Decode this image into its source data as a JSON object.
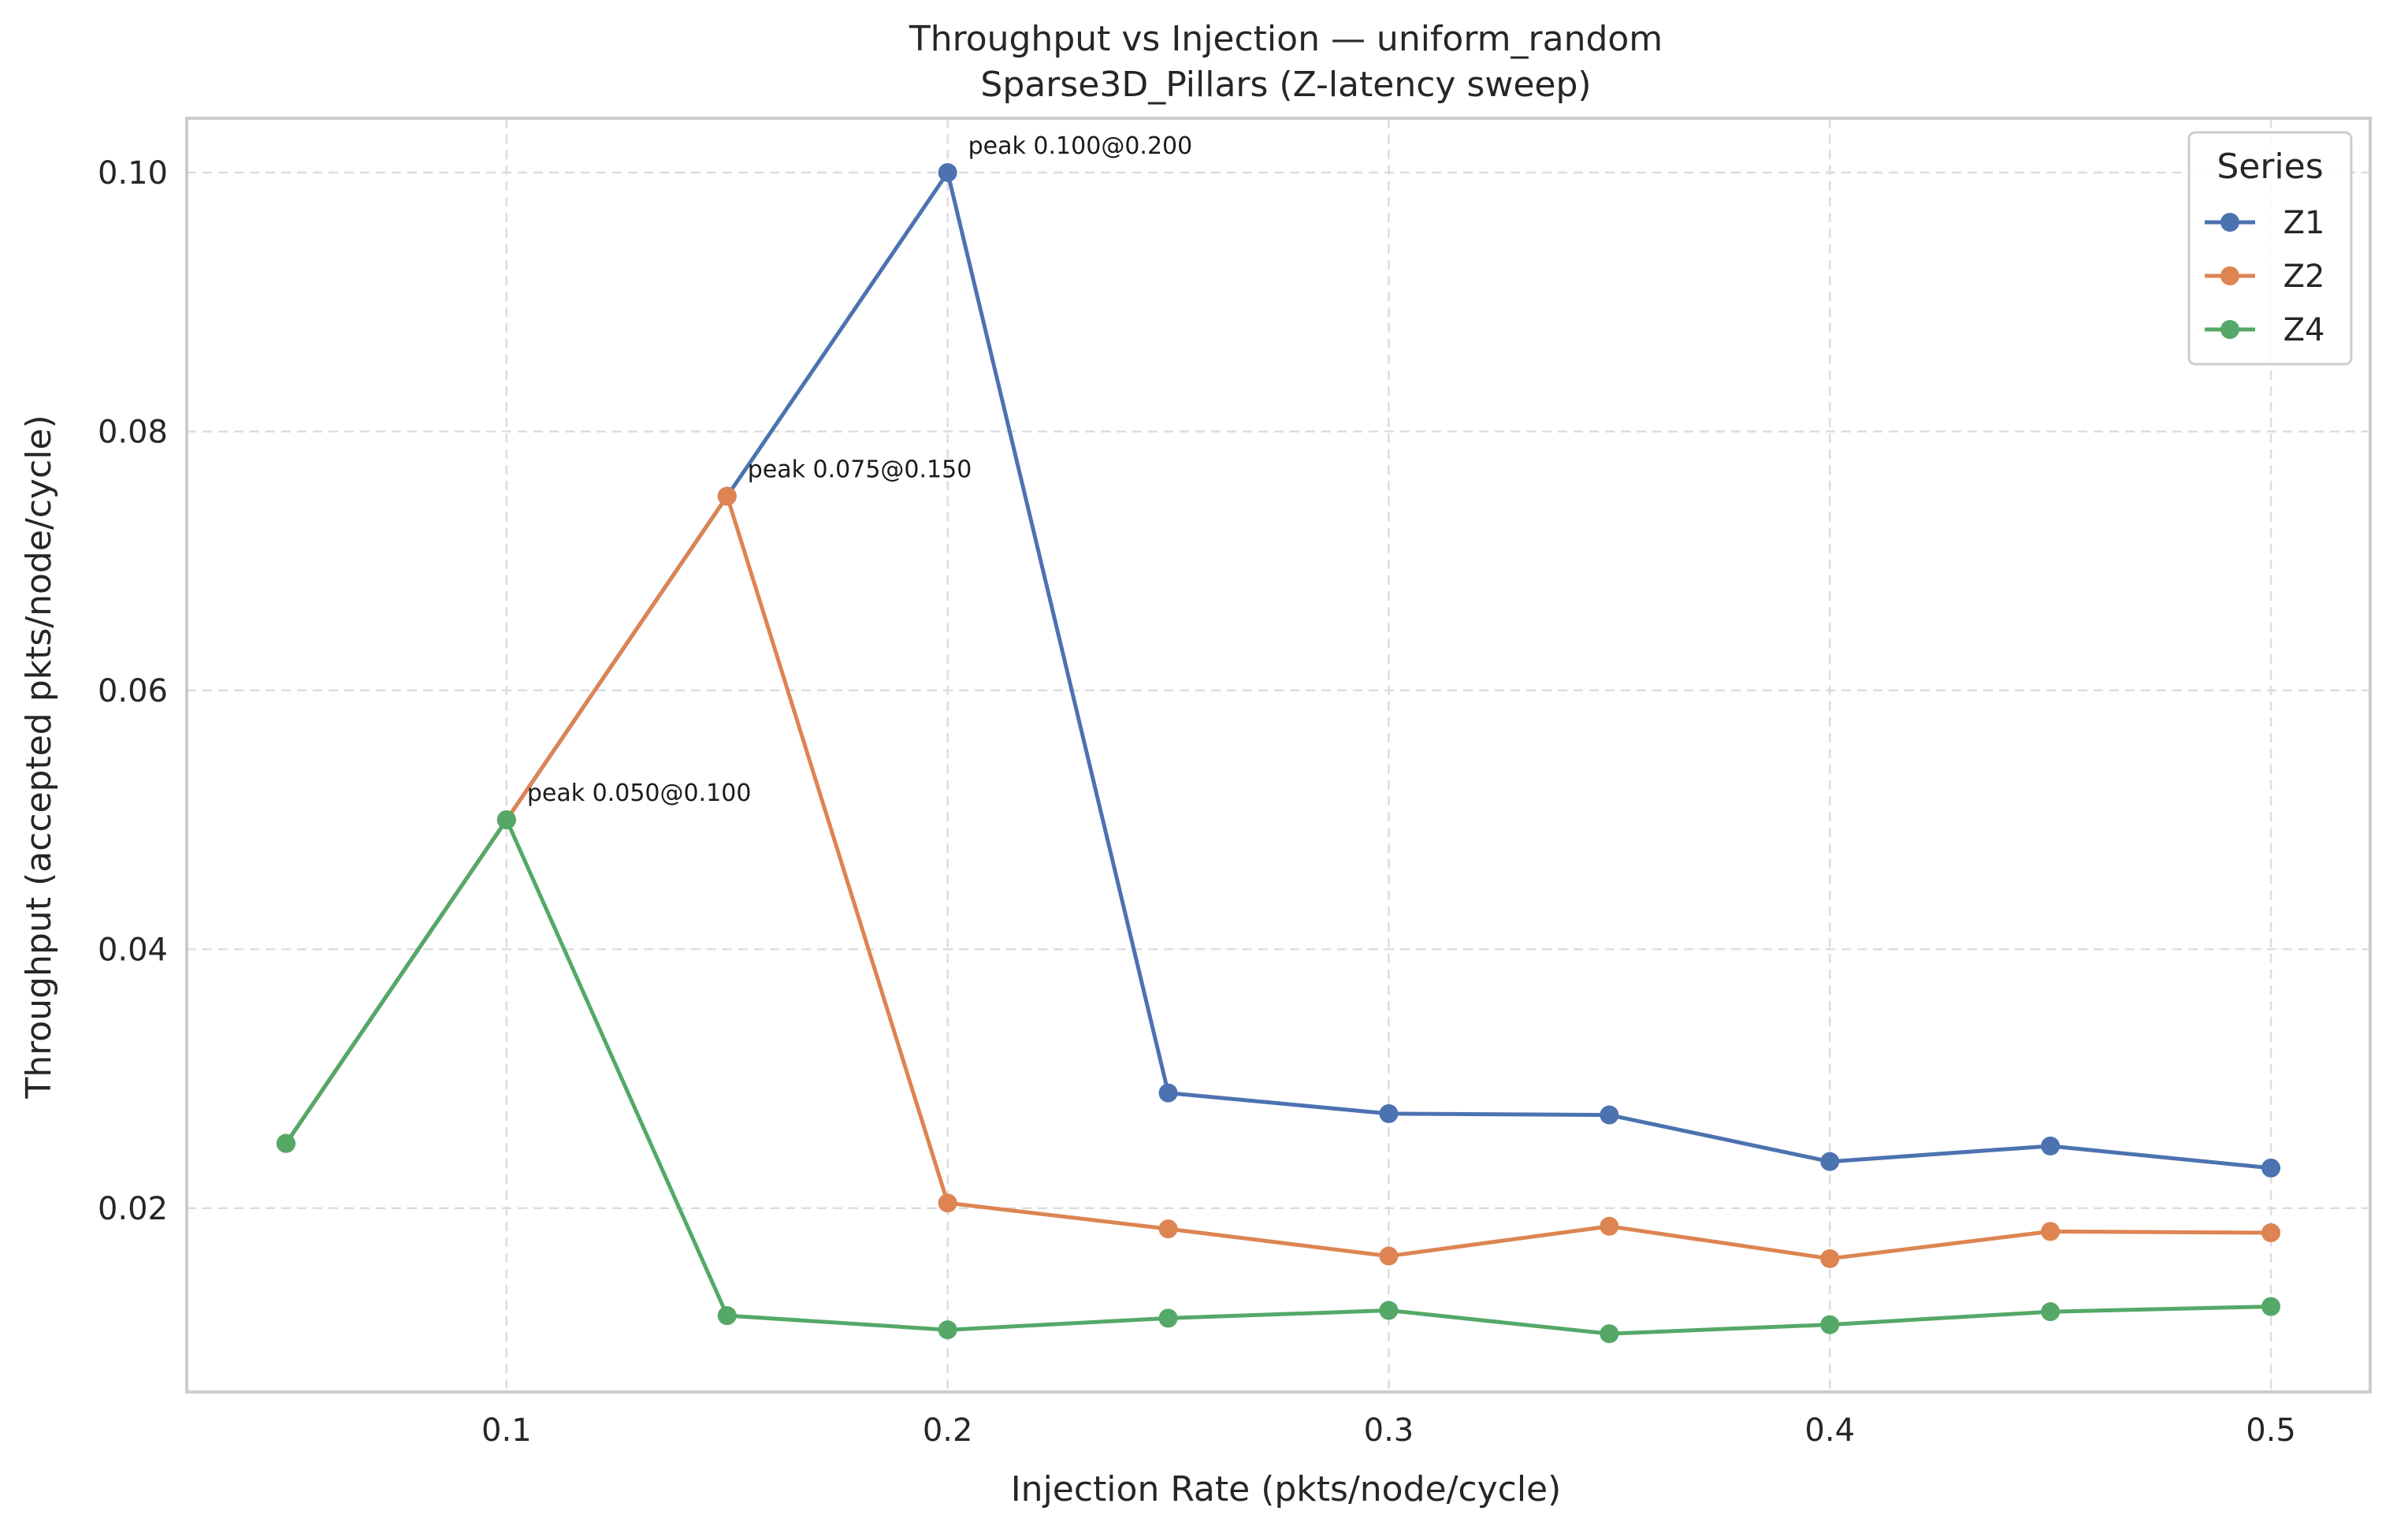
{
  "chart_data": {
    "type": "line",
    "title": "Throughput vs Injection — uniform_random",
    "subtitle": "Sparse3D_Pillars (Z-latency sweep)",
    "xlabel": "Injection Rate (pkts/node/cycle)",
    "ylabel": "Throughput (accepted pkts/node/cycle)",
    "xlim": [
      0.0275,
      0.5225
    ],
    "ylim": [
      0.0058,
      0.1042
    ],
    "xticks": [
      0.1,
      0.2,
      0.3,
      0.4,
      0.5
    ],
    "xtick_labels": [
      "0.1",
      "0.2",
      "0.3",
      "0.4",
      "0.5"
    ],
    "yticks": [
      0.02,
      0.04,
      0.06,
      0.08,
      0.1
    ],
    "ytick_labels": [
      "0.02",
      "0.04",
      "0.06",
      "0.08",
      "0.10"
    ],
    "grid": true,
    "legend": {
      "title": "Series",
      "placement": "top-right"
    },
    "x": [
      0.05,
      0.1,
      0.15,
      0.2,
      0.25,
      0.3,
      0.35,
      0.4,
      0.45,
      0.5
    ],
    "series": [
      {
        "name": "Z1",
        "color": "#4c72b0",
        "values": [
          0.025,
          0.05,
          0.075,
          0.1,
          0.0289,
          0.0273,
          0.0272,
          0.0236,
          0.0248,
          0.0231
        ]
      },
      {
        "name": "Z2",
        "color": "#dd8452",
        "values": [
          0.025,
          0.05,
          0.075,
          0.0204,
          0.0184,
          0.0163,
          0.0186,
          0.0161,
          0.0182,
          0.0181
        ]
      },
      {
        "name": "Z4",
        "color": "#55a868",
        "values": [
          0.025,
          0.05,
          0.0117,
          0.0106,
          0.0115,
          0.0121,
          0.0103,
          0.011,
          0.012,
          0.0124
        ]
      }
    ],
    "annotations": [
      {
        "text": "peak 0.100@0.200",
        "x": 0.2,
        "y": 0.1
      },
      {
        "text": "peak 0.075@0.150",
        "x": 0.15,
        "y": 0.075
      },
      {
        "text": "peak 0.050@0.100",
        "x": 0.1,
        "y": 0.05
      }
    ]
  }
}
